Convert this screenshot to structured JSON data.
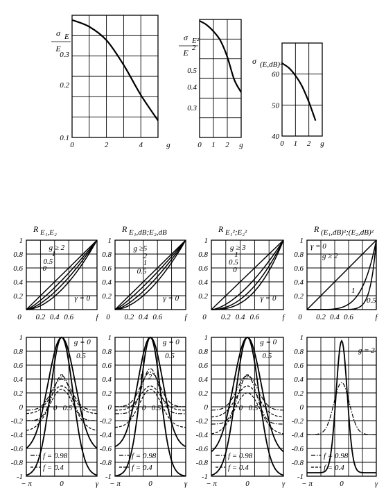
{
  "chart_data": [
    {
      "type": "line",
      "title": "σ_E / E",
      "title_main": "σ",
      "title_sub": "E",
      "title_den": "E",
      "x": [
        0,
        1,
        2,
        3,
        4,
        5
      ],
      "xticks": [
        "0",
        "2",
        "4",
        "g"
      ],
      "yticks": [
        "0.1",
        "0.2",
        "0.3"
      ],
      "yscale": "log",
      "ylim": [
        0.1,
        0.5
      ],
      "xlim": [
        0,
        5
      ],
      "series": [
        {
          "values": [
            0.47,
            0.43,
            0.36,
            0.26,
            0.175,
            0.125
          ]
        }
      ]
    },
    {
      "type": "line",
      "title": "σ_E² / E²",
      "title_main": "σ",
      "title_sub": "E²",
      "title_den": "E",
      "title_den_sup": "2",
      "x": [
        0,
        0.5,
        1,
        1.5,
        2,
        2.5,
        3
      ],
      "xticks": [
        "0",
        "1",
        "2",
        "g"
      ],
      "yticks": [
        "0.3",
        "0.4",
        "0.5"
      ],
      "yscale": "log",
      "ylim": [
        0.2,
        1.0
      ],
      "xlim": [
        0,
        3
      ],
      "series": [
        {
          "values": [
            0.98,
            0.93,
            0.85,
            0.75,
            0.6,
            0.44,
            0.37
          ]
        }
      ]
    },
    {
      "type": "line",
      "title": "σ_(E,dB)²",
      "title_main": "σ",
      "title_sub": "(E,dB)²",
      "x": [
        0,
        0.5,
        1,
        1.5,
        2,
        2.5
      ],
      "xticks": [
        "0",
        "1",
        "2",
        "g"
      ],
      "yticks": [
        "40",
        "50",
        "60"
      ],
      "ylim": [
        40,
        70
      ],
      "xlim": [
        0,
        3
      ],
      "series": [
        {
          "values": [
            63.5,
            62,
            59.5,
            56,
            51,
            45
          ]
        }
      ]
    },
    {
      "type": "line",
      "title": "R_E1,E2",
      "title_main": "R",
      "title_sub": "E₁,E₂",
      "xticks": [
        "0",
        "0.2",
        "0.4",
        "0.6",
        "f"
      ],
      "yticks": [
        "0.2",
        "0.4",
        "0.6",
        "0.8",
        "1"
      ],
      "xlim": [
        0,
        1
      ],
      "ylim": [
        0,
        1
      ],
      "annotations": [
        "g ≥ 2",
        "1",
        "0.5",
        "0",
        "γ = 0"
      ],
      "series": [
        {
          "name": "g ≥ 2",
          "exponent": 1.0
        },
        {
          "name": "1",
          "exponent": 1.25
        },
        {
          "name": "0.5",
          "exponent": 1.5
        },
        {
          "name": "0",
          "exponent": 1.8
        }
      ]
    },
    {
      "type": "line",
      "title": "R_E1,dB;E2,dB",
      "title_main": "R",
      "title_sub": "E₁,dB;E₂,dB",
      "xticks": [
        "0",
        "0.2",
        "0.4",
        "0.6",
        "f"
      ],
      "yticks": [
        "0.2",
        "0.4",
        "0.6",
        "0.8",
        "1"
      ],
      "xlim": [
        0,
        1
      ],
      "ylim": [
        0,
        1
      ],
      "annotations": [
        "g ≥5",
        "2",
        "1",
        "0.5",
        "γ = 0"
      ],
      "series": [
        {
          "name": "g ≥5",
          "exponent": 1.0
        },
        {
          "name": "2",
          "exponent": 1.2
        },
        {
          "name": "1",
          "exponent": 1.45
        },
        {
          "name": "0.5",
          "exponent": 1.75
        }
      ]
    },
    {
      "type": "line",
      "title": "R_E1²;E2²",
      "title_main": "R",
      "title_sub": "E₁²;E₂²",
      "xticks": [
        "0",
        "0.2",
        "0.4",
        "0.6",
        "f"
      ],
      "yticks": [
        "0.2",
        "0.4",
        "0.6",
        "0.8",
        "1"
      ],
      "xlim": [
        0,
        1
      ],
      "ylim": [
        0,
        1
      ],
      "annotations": [
        "g ≥ 3",
        "1",
        "0.5",
        "0",
        "γ = 0"
      ],
      "series": [
        {
          "name": "g ≥ 3",
          "exponent": 1.0
        },
        {
          "name": "1",
          "exponent": 1.6
        },
        {
          "name": "0.5",
          "exponent": 2.1
        },
        {
          "name": "0",
          "exponent": 2.6
        }
      ]
    },
    {
      "type": "line",
      "title": "R_(E1,dB)²;(E2,dB)²",
      "title_main": "R",
      "title_sub": "(E₁,dB)²;(E₂,dB)²",
      "xticks": [
        "0",
        "0.2",
        "0.4",
        "0.6",
        "f"
      ],
      "yticks": [
        "0.2",
        "0.4",
        "0.6",
        "0.8",
        "1"
      ],
      "xlim": [
        0,
        1
      ],
      "ylim": [
        0,
        1
      ],
      "annotations": [
        "γ = 0",
        "g ≥ 2",
        "1",
        "0.5"
      ],
      "series": [
        {
          "name": "g ≥ 2",
          "exponent": 1.0
        },
        {
          "name": "1",
          "exponent": 5.0
        },
        {
          "name": "0.5",
          "exponent": 12.0
        }
      ]
    },
    {
      "type": "line",
      "xticks": [
        "− π",
        "0",
        "γ"
      ],
      "yticks": [
        "1",
        "0.8",
        "0.6",
        "0.4",
        "0.2",
        "0",
        "-0.2",
        "-0.4",
        "-0.6",
        "-0.8",
        "-1"
      ],
      "ylim": [
        -1,
        1
      ],
      "xlim": [
        -3.1416,
        3.1416
      ],
      "annotations": [
        "g = 0",
        "0.5",
        "1",
        "2",
        "0",
        "0.5"
      ],
      "legend": [
        {
          "style": "dash-dot",
          "label": "f = 0.98"
        },
        {
          "style": "dashed",
          "label": "f = 0.4"
        }
      ],
      "series": [
        {
          "name": "g = 0",
          "style": "solid",
          "amp": 2.0,
          "width": 1.0,
          "shift": -1.0
        },
        {
          "name": "0.5",
          "style": "solid",
          "amp": 1.65,
          "width": 1.2,
          "shift": -0.65
        },
        {
          "name": "1",
          "style": "dash-dot",
          "amp": 0.65,
          "width": 0.8,
          "shift": -0.2
        },
        {
          "name": "2",
          "style": "dash-dot",
          "amp": 0.45,
          "width": 0.9,
          "shift": -0.05
        },
        {
          "name": "0",
          "style": "dashed",
          "amp": 0.6,
          "width": 1.1,
          "shift": -0.35
        },
        {
          "name": "0.5",
          "style": "dashed",
          "amp": 0.4,
          "width": 1.0,
          "shift": -0.1
        }
      ]
    },
    {
      "type": "line",
      "xticks": [
        "− π",
        "0",
        "γ"
      ],
      "yticks": [
        "1",
        "0.8",
        "0.6",
        "0.4",
        "0.2",
        "0",
        "-0.2",
        "-0.4",
        "-0.6",
        "-0.8",
        "-1"
      ],
      "ylim": [
        -1,
        1
      ],
      "xlim": [
        -3.1416,
        3.1416
      ],
      "annotations": [
        "g = 0",
        "0.5",
        "1",
        "2",
        "0",
        "0.5"
      ],
      "legend": [
        {
          "style": "dash-dot",
          "label": "f = 0.98"
        },
        {
          "style": "dashed",
          "label": "f = 0.4"
        }
      ],
      "series": [
        {
          "name": "g = 0",
          "style": "solid",
          "amp": 2.0,
          "width": 0.9,
          "shift": -1.0
        },
        {
          "name": "0.5",
          "style": "solid",
          "amp": 1.6,
          "width": 1.1,
          "shift": -0.6
        },
        {
          "name": "1",
          "style": "dash-dot",
          "amp": 0.65,
          "width": 0.75,
          "shift": -0.1
        },
        {
          "name": "2",
          "style": "dash-dot",
          "amp": 0.5,
          "width": 0.85,
          "shift": 0.0
        },
        {
          "name": "0",
          "style": "dashed",
          "amp": 0.55,
          "width": 1.0,
          "shift": -0.3
        },
        {
          "name": "0.5",
          "style": "dashed",
          "amp": 0.35,
          "width": 0.9,
          "shift": -0.05
        }
      ]
    },
    {
      "type": "line",
      "xticks": [
        "− π",
        "0",
        "γ"
      ],
      "yticks": [
        "1",
        "0.8",
        "0.6",
        "0.4",
        "0.2",
        "0",
        "-0.2",
        "-0.4",
        "-0.6",
        "-0.8",
        "-1"
      ],
      "ylim": [
        -1,
        1
      ],
      "xlim": [
        -3.1416,
        3.1416
      ],
      "annotations": [
        "g = 0",
        "0.5",
        "1",
        "2",
        "0",
        "0.5"
      ],
      "legend": [
        {
          "style": "dash-dot",
          "label": "f = 0.98"
        },
        {
          "style": "dashed",
          "label": "f = 0.4"
        }
      ],
      "series": [
        {
          "name": "g = 0",
          "style": "solid",
          "amp": 2.0,
          "width": 1.0,
          "shift": -1.0
        },
        {
          "name": "0.5",
          "style": "solid",
          "amp": 1.7,
          "width": 1.2,
          "shift": -0.7
        },
        {
          "name": "1",
          "style": "dash-dot",
          "amp": 0.7,
          "width": 0.8,
          "shift": -0.25
        },
        {
          "name": "2",
          "style": "dash-dot",
          "amp": 0.5,
          "width": 0.9,
          "shift": -0.05
        },
        {
          "name": "0",
          "style": "dashed",
          "amp": 0.6,
          "width": 1.1,
          "shift": -0.4
        },
        {
          "name": "0.5",
          "style": "dashed",
          "amp": 0.45,
          "width": 1.0,
          "shift": -0.15
        }
      ]
    },
    {
      "type": "line",
      "xticks": [
        "− π",
        "0",
        "γ"
      ],
      "yticks": [
        "1",
        "0.8",
        "0.6",
        "0.4",
        "0.2",
        "0",
        "-0.2",
        "-0.4",
        "-0.6",
        "-0.8",
        "-1"
      ],
      "ylim": [
        -1,
        1
      ],
      "xlim": [
        -3.1416,
        3.1416
      ],
      "annotations": [
        "g = 2"
      ],
      "legend": [
        {
          "style": "dash-dot",
          "label": "f = 0.98"
        },
        {
          "style": "dashed",
          "label": "f = 0.4"
        }
      ],
      "series": [
        {
          "name": "f = 0.98",
          "style": "solid",
          "amp": 1.9,
          "width": 0.5,
          "shift": -0.95
        },
        {
          "name": "f = 0.4",
          "style": "dash-dot",
          "amp": 0.75,
          "width": 0.7,
          "shift": -0.4
        }
      ]
    }
  ]
}
